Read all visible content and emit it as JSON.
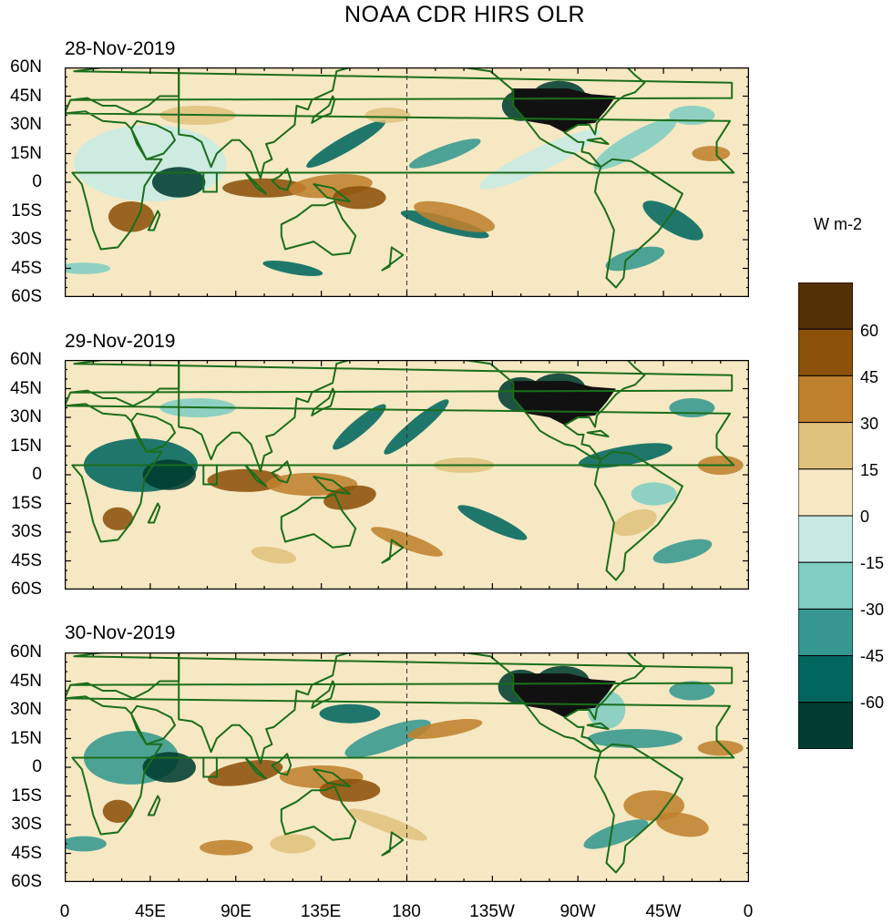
{
  "title": "NOAA CDR HIRS OLR",
  "panels": [
    {
      "date": "28-Nov-2019"
    },
    {
      "date": "29-Nov-2019"
    },
    {
      "date": "30-Nov-2019"
    }
  ],
  "lat_labels": [
    "60N",
    "45N",
    "30N",
    "15N",
    "0",
    "15S",
    "30S",
    "45S",
    "60S"
  ],
  "lon_labels": [
    "0",
    "45E",
    "90E",
    "135E",
    "180",
    "135W",
    "90W",
    "45W",
    "0"
  ],
  "colorbar": {
    "unit": "W m-2",
    "tick_labels": [
      "60",
      "45",
      "30",
      "15",
      "0",
      "-15",
      "-30",
      "-45",
      "-60"
    ],
    "colors": [
      "#543005",
      "#8c510a",
      "#bf812d",
      "#dfc27d",
      "#f6e8c3",
      "#c7eae5",
      "#80cdc1",
      "#35978f",
      "#01665e",
      "#003c30"
    ]
  },
  "colors": {
    "land_outline": "#1a6e1a"
  }
}
